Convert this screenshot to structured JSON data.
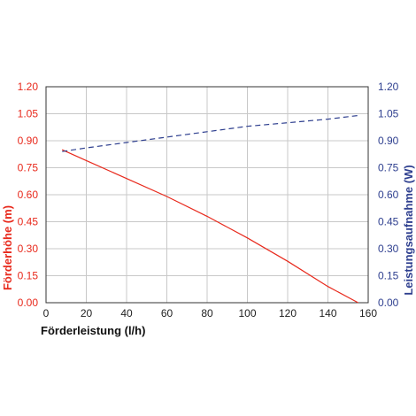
{
  "chart_data": {
    "type": "line",
    "xlabel": "Förderleistung (l/h)",
    "ylabel_left": "Förderhöhe (m)",
    "ylabel_right": "Leistungsaufnahme (W)",
    "xlim": [
      0,
      160
    ],
    "ylim_left": [
      0,
      1.2
    ],
    "ylim_right": [
      0,
      1.2
    ],
    "x_ticks": [
      "0",
      "20",
      "40",
      "60",
      "80",
      "100",
      "120",
      "140",
      "160"
    ],
    "y_ticks_left": [
      "0.00",
      "0.15",
      "0.30",
      "0.45",
      "0.60",
      "0.75",
      "0.90",
      "1.05",
      "1.20"
    ],
    "y_ticks_right": [
      "0.00",
      "0.15",
      "0.30",
      "0.45",
      "0.60",
      "0.75",
      "0.90",
      "1.05",
      "1.20"
    ],
    "grid": true,
    "colors": {
      "left": "#e8291c",
      "right": "#2e3f8f",
      "grid": "#c8c8c8",
      "frame": "#333333"
    },
    "series": [
      {
        "axis": "left",
        "style": "solid",
        "color": "#e8291c",
        "x": [
          8,
          20,
          40,
          60,
          80,
          100,
          120,
          140,
          155
        ],
        "y": [
          0.85,
          0.79,
          0.69,
          0.59,
          0.48,
          0.36,
          0.23,
          0.09,
          0.0
        ]
      },
      {
        "axis": "right",
        "style": "dashed",
        "color": "#2e3f8f",
        "x": [
          8,
          20,
          40,
          60,
          80,
          100,
          120,
          140,
          155
        ],
        "y": [
          0.84,
          0.86,
          0.89,
          0.92,
          0.95,
          0.98,
          1.0,
          1.02,
          1.04
        ]
      }
    ]
  }
}
